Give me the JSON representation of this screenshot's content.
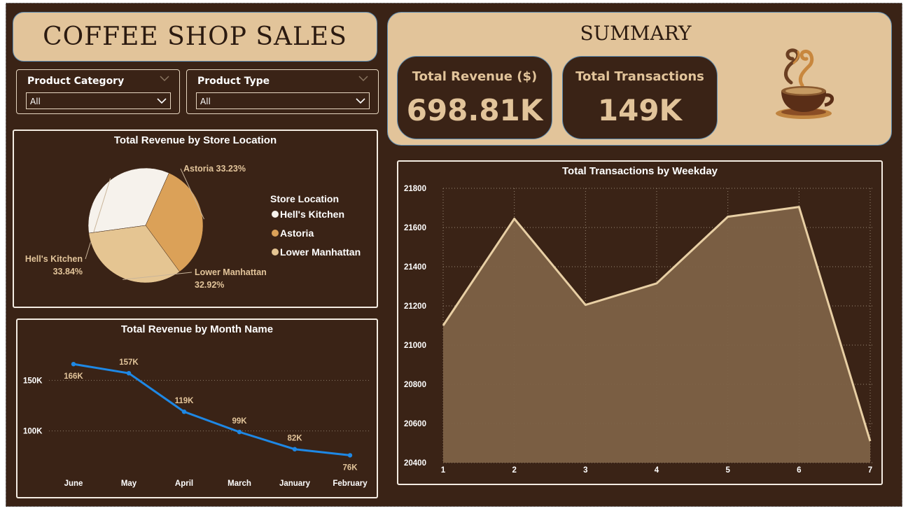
{
  "dashboard": {
    "title": "COFFEE SHOP SALES"
  },
  "filters": [
    {
      "label": "Product Category",
      "value": "All"
    },
    {
      "label": "Product Type",
      "value": "All"
    }
  ],
  "summary": {
    "title": "SUMMARY",
    "kpis": [
      {
        "label": "Total Revenue ($)",
        "value": "698.81K"
      },
      {
        "label": "Total Transactions",
        "value": "149K"
      }
    ]
  },
  "colors": {
    "background": "#3a2316",
    "tan": "#e2c49a",
    "line_blue": "#1e88e5",
    "area_fill": "#7d6246",
    "area_line": "#e8cfa4"
  },
  "chart_data": [
    {
      "type": "pie",
      "title": "Total Revenue by Store Location",
      "legend_title": "Store Location",
      "legend_position": "right",
      "slices": [
        {
          "name": "Hell's Kitchen",
          "percent": 33.84,
          "color": "#f6f2ec",
          "label_lines": [
            "Hell's Kitchen",
            "33.84%"
          ]
        },
        {
          "name": "Astoria",
          "percent": 33.23,
          "color": "#dba158",
          "label_lines": [
            "Astoria 33.23%"
          ]
        },
        {
          "name": "Lower Manhattan",
          "percent": 32.92,
          "color": "#e5c592",
          "label_lines": [
            "Lower Manhattan",
            "32.92%"
          ]
        }
      ]
    },
    {
      "type": "line",
      "title": "Total Revenue by Month Name",
      "categories": [
        "June",
        "May",
        "April",
        "March",
        "January",
        "February"
      ],
      "values": [
        166,
        157,
        119,
        99,
        82,
        76
      ],
      "data_labels": [
        "166K",
        "157K",
        "119K",
        "99K",
        "82K",
        "76K"
      ],
      "y_ticks": [
        100,
        150
      ],
      "y_tick_labels": [
        "100K",
        "150K"
      ],
      "ylim": [
        68,
        182
      ],
      "grid": true
    },
    {
      "type": "area",
      "title": "Total Transactions by Weekday",
      "x": [
        1,
        2,
        3,
        4,
        5,
        6,
        7
      ],
      "x_labels": [
        "1",
        "2",
        "3",
        "4",
        "5",
        "6",
        "7"
      ],
      "values": [
        21100,
        21645,
        21205,
        21315,
        21655,
        21705,
        20510
      ],
      "y_ticks": [
        20400,
        20600,
        20800,
        21000,
        21200,
        21400,
        21600,
        21800
      ],
      "y_tick_labels": [
        "20400",
        "20600",
        "20800",
        "21000",
        "21200",
        "21400",
        "21600",
        "21800"
      ],
      "ylim": [
        20400,
        21800
      ],
      "grid": true
    }
  ]
}
